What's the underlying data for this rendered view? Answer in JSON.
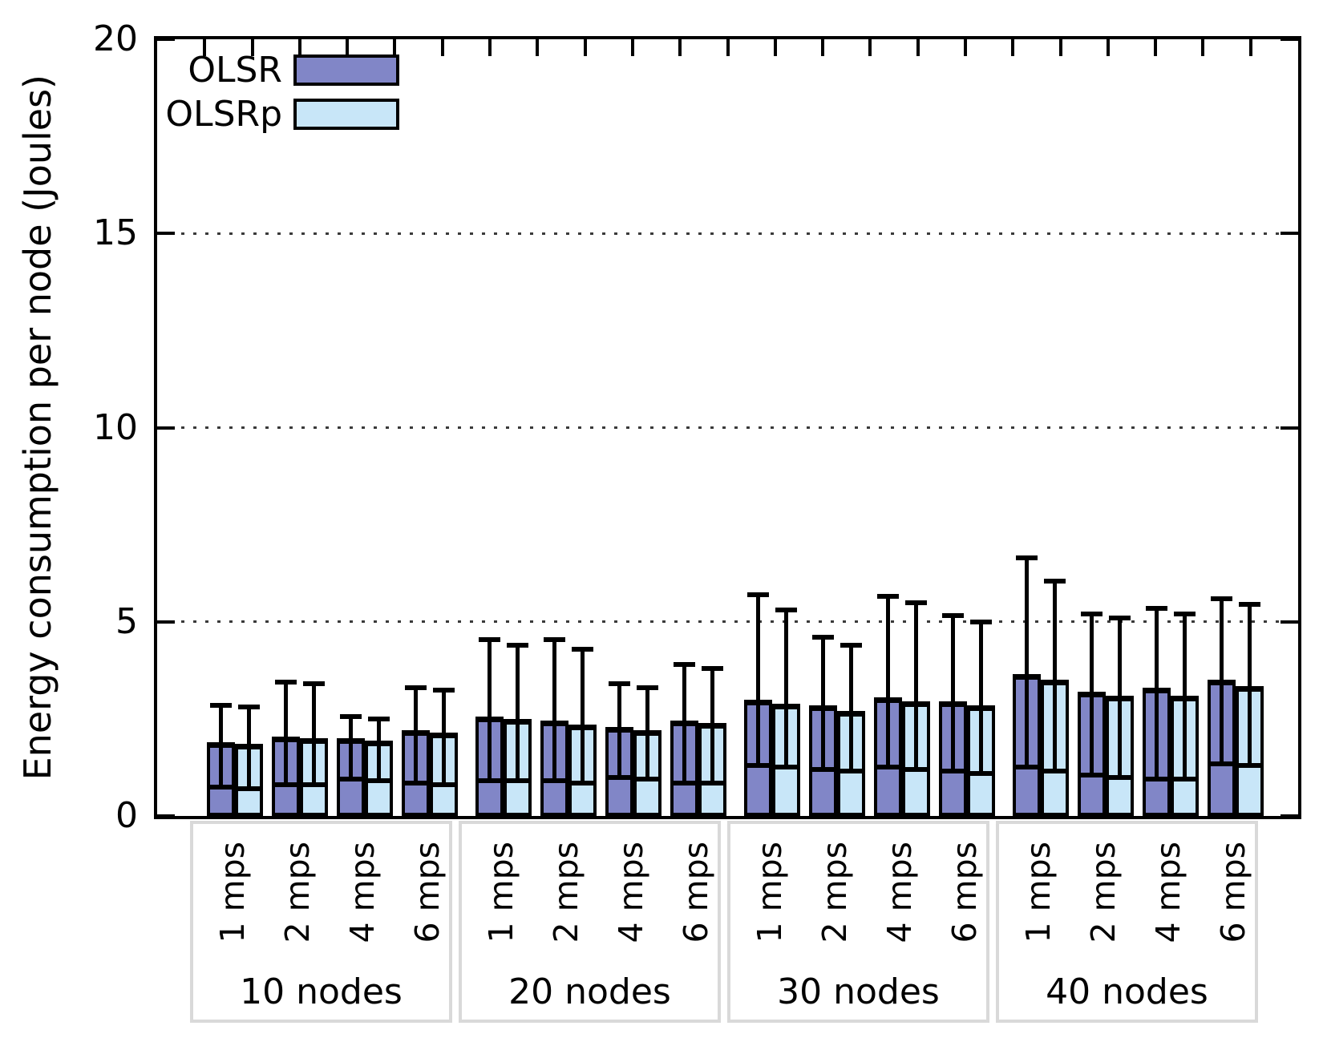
{
  "y_axis": {
    "label": "Energy consumption per node (Joules)",
    "ticks": [
      0,
      5,
      10,
      15,
      20
    ],
    "gridlines": [
      5,
      10,
      15
    ],
    "range": [
      0,
      20
    ]
  },
  "legend": [
    {
      "label": "OLSR",
      "color": "#8186c7"
    },
    {
      "label": "OLSRp",
      "color": "#c8e6f8"
    }
  ],
  "chart_data": {
    "type": "bar",
    "title": "",
    "xlabel": "",
    "ylabel": "Energy consumption per node (Joules)",
    "ylim": [
      0,
      20
    ],
    "yticks": [
      0,
      5,
      10,
      15,
      20
    ],
    "grid": "horizontal dotted lines at 5, 10, 15",
    "legend_position": "top-left inside plot",
    "error_bars": true,
    "series_colors": {
      "OLSR": "#8186c7",
      "OLSRp": "#c8e6f8"
    },
    "categories_per_group": [
      "1 mps",
      "2 mps",
      "4 mps",
      "6 mps"
    ],
    "groups": [
      {
        "label": "10 nodes",
        "categories": [
          "1 mps",
          "2 mps",
          "4 mps",
          "6 mps"
        ],
        "series": [
          {
            "name": "OLSR",
            "values": [
              1.9,
              2.05,
              2.0,
              2.2
            ],
            "err_low": [
              0.75,
              0.8,
              0.95,
              0.85
            ],
            "err_high": [
              2.85,
              3.45,
              2.55,
              3.3
            ]
          },
          {
            "name": "OLSRp",
            "values": [
              1.85,
              2.0,
              1.95,
              2.15
            ],
            "err_low": [
              0.7,
              0.8,
              0.9,
              0.8
            ],
            "err_high": [
              2.8,
              3.4,
              2.5,
              3.25
            ]
          }
        ]
      },
      {
        "label": "20 nodes",
        "categories": [
          "1 mps",
          "2 mps",
          "4 mps",
          "6 mps"
        ],
        "series": [
          {
            "name": "OLSR",
            "values": [
              2.55,
              2.45,
              2.3,
              2.45
            ],
            "err_low": [
              0.9,
              0.9,
              1.0,
              0.85
            ],
            "err_high": [
              4.55,
              4.55,
              3.4,
              3.9
            ]
          },
          {
            "name": "OLSRp",
            "values": [
              2.5,
              2.35,
              2.2,
              2.4
            ],
            "err_low": [
              0.9,
              0.85,
              0.95,
              0.85
            ],
            "err_high": [
              4.4,
              4.3,
              3.3,
              3.8
            ]
          }
        ]
      },
      {
        "label": "30 nodes",
        "categories": [
          "1 mps",
          "2 mps",
          "4 mps",
          "6 mps"
        ],
        "series": [
          {
            "name": "OLSR",
            "values": [
              3.0,
              2.85,
              3.05,
              2.95
            ],
            "err_low": [
              1.3,
              1.2,
              1.25,
              1.15
            ],
            "err_high": [
              5.7,
              4.6,
              5.65,
              5.15
            ]
          },
          {
            "name": "OLSRp",
            "values": [
              2.9,
              2.7,
              2.95,
              2.85
            ],
            "err_low": [
              1.25,
              1.15,
              1.2,
              1.1
            ],
            "err_high": [
              5.3,
              4.4,
              5.5,
              5.0
            ]
          }
        ]
      },
      {
        "label": "40 nodes",
        "categories": [
          "1 mps",
          "2 mps",
          "4 mps",
          "6 mps"
        ],
        "series": [
          {
            "name": "OLSR",
            "values": [
              3.65,
              3.2,
              3.3,
              3.5
            ],
            "err_low": [
              1.25,
              1.05,
              0.95,
              1.35
            ],
            "err_high": [
              6.65,
              5.2,
              5.35,
              5.6
            ]
          },
          {
            "name": "OLSRp",
            "values": [
              3.5,
              3.1,
              3.1,
              3.35
            ],
            "err_low": [
              1.15,
              1.0,
              0.95,
              1.3
            ],
            "err_high": [
              6.05,
              5.1,
              5.2,
              5.45
            ]
          }
        ]
      }
    ]
  }
}
